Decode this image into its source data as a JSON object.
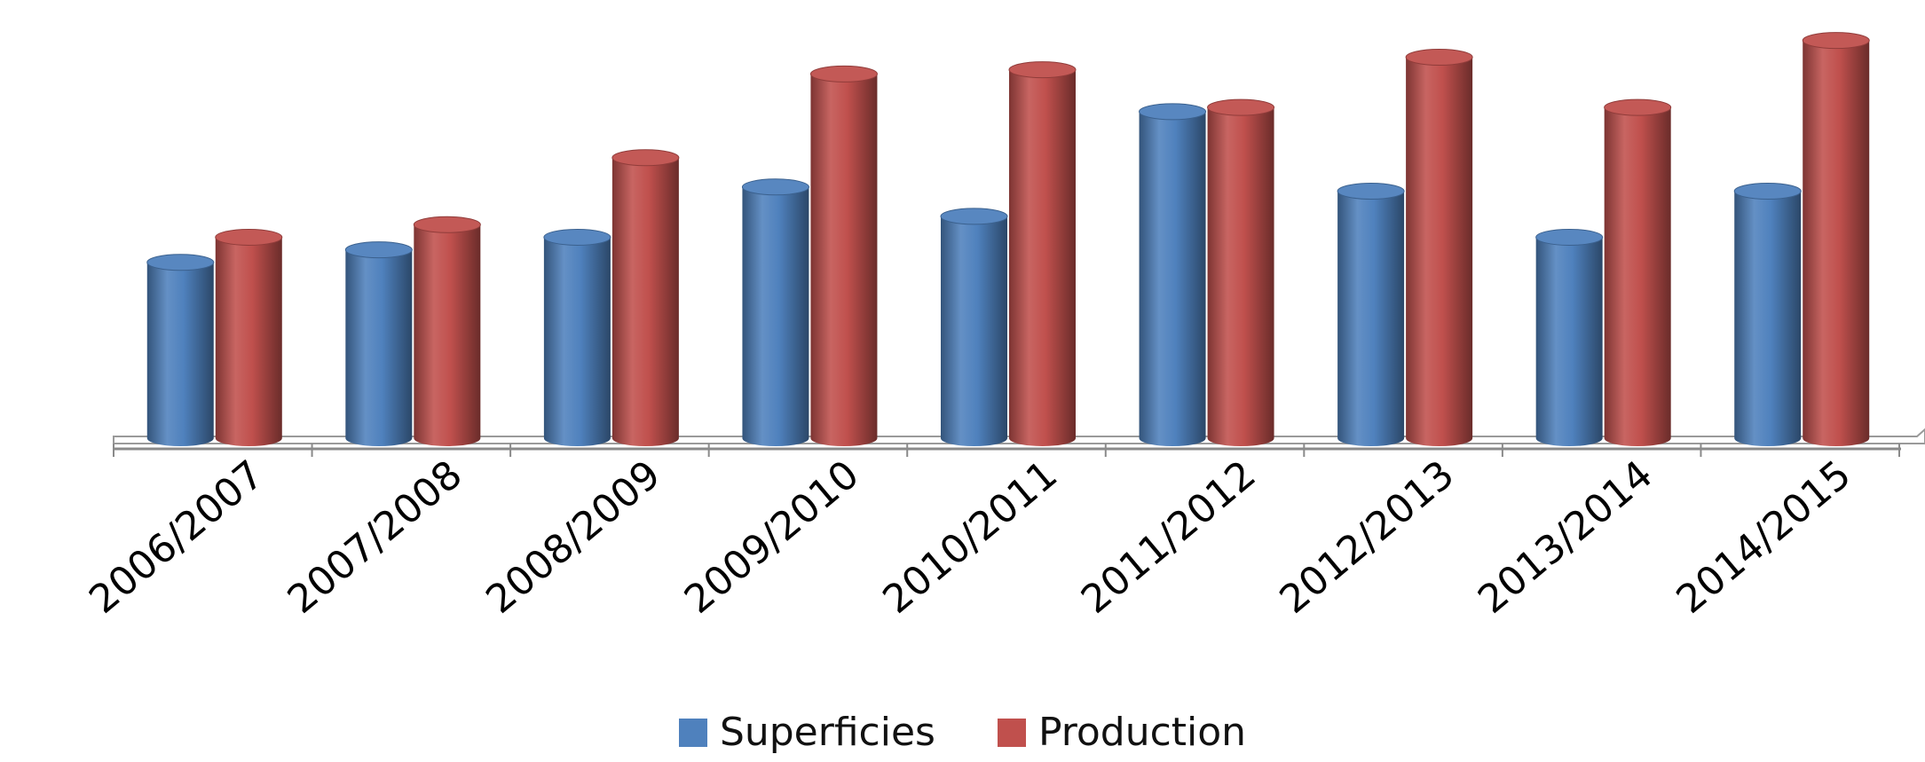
{
  "chart_data": {
    "type": "bar",
    "categories": [
      "2006/2007",
      "2007/2008",
      "2008/2009",
      "2009/2010",
      "2010/2011",
      "2011/2012",
      "2012/2013",
      "2013/2014",
      "2014/2015"
    ],
    "series": [
      {
        "name": "Superficies",
        "color": "#4F81BD",
        "values": [
          42,
          45,
          48,
          60,
          53,
          78,
          59,
          48,
          59
        ]
      },
      {
        "name": "Production",
        "color": "#C0504D",
        "values": [
          48,
          51,
          67,
          87,
          88,
          79,
          91,
          79,
          95
        ]
      }
    ],
    "ylim": [
      0,
      100
    ],
    "grid": false,
    "legend": "bottom",
    "style": "3d-cylinder"
  }
}
